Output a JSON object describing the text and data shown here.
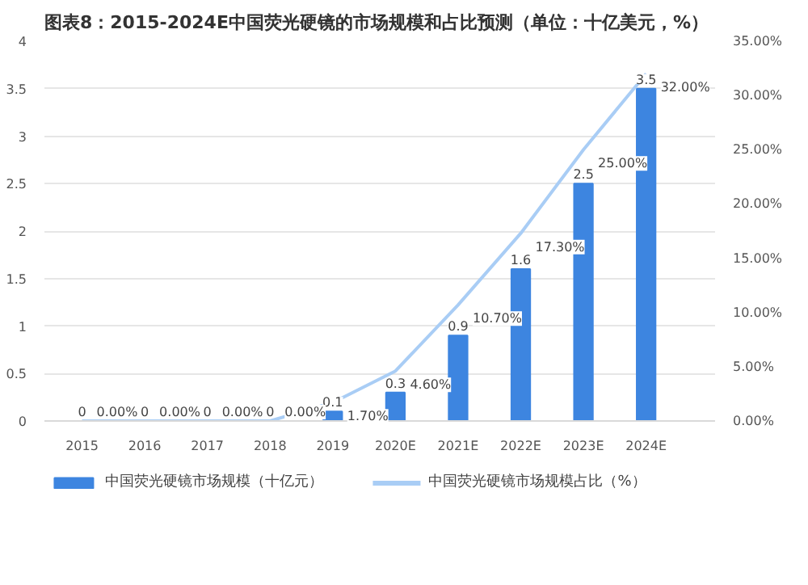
{
  "chart_data": {
    "type": "bar",
    "title": "图表8：2015-2024E中国荧光硬镜的市场规模和占比预测（单位：十亿美元，%）",
    "categories": [
      "2015",
      "2016",
      "2017",
      "2018",
      "2019",
      "2020E",
      "2021E",
      "2022E",
      "2023E",
      "2024E"
    ],
    "series": [
      {
        "name": "中国荧光硬镜市场规模（十亿元）",
        "color": "#3d85e0",
        "values": [
          0,
          0,
          0,
          0,
          0.1,
          0.3,
          0.9,
          1.6,
          2.5,
          3.5
        ],
        "value_labels": [
          "0",
          "0",
          "0",
          "0",
          "0.1",
          "0.3",
          "0.9",
          "1.6",
          "2.5",
          "3.5"
        ]
      },
      {
        "name": "中国荧光硬镜市场规模占比（%）",
        "type": "line",
        "axis": "y2",
        "color": "#a9cdf5",
        "values": [
          0,
          0,
          0,
          0,
          1.7,
          4.6,
          10.7,
          17.3,
          25,
          32
        ],
        "value_labels": [
          "0.00%",
          "0.00%",
          "0.00%",
          "0.00%",
          "1.70%",
          "4.60%",
          "10.70%",
          "17.30%",
          "25.00%",
          "32.00%"
        ]
      }
    ],
    "ylim": [
      0,
      4
    ],
    "yticks": [
      0,
      0.5,
      1,
      1.5,
      2,
      2.5,
      3,
      3.5,
      4
    ],
    "y2lim": [
      0,
      35
    ],
    "y2ticks": [
      {
        "value": 0,
        "label": "0.00%"
      },
      {
        "value": 5,
        "label": "5.00%"
      },
      {
        "value": 10,
        "label": "10.00%"
      },
      {
        "value": 15,
        "label": "15.00%"
      },
      {
        "value": 20,
        "label": "20.00%"
      },
      {
        "value": 25,
        "label": "25.00%"
      },
      {
        "value": 30,
        "label": "30.00%"
      },
      {
        "value": 35,
        "label": "35.00%"
      }
    ],
    "grid": "y",
    "legend": "bottom"
  }
}
